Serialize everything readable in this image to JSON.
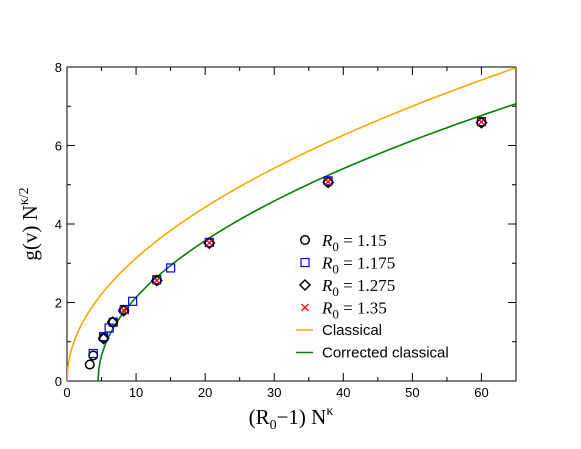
{
  "chart_data": {
    "type": "scatter",
    "xlabel": {
      "base": "(R",
      "sub": "0",
      "mid": "−1) N",
      "sup": "κ"
    },
    "ylabel": {
      "base": "g(v) N",
      "sup": "κ/2"
    },
    "xlim": [
      0,
      65
    ],
    "ylim": [
      0,
      8
    ],
    "xticks": [
      0,
      10,
      20,
      30,
      40,
      50,
      60
    ],
    "yticks": [
      0,
      2,
      4,
      6,
      8
    ],
    "x_minor_step": 5,
    "y_minor_step": 1,
    "grid": false,
    "legend_position": "center-right",
    "series": [
      {
        "name": "R0 = 1.15",
        "label_var": "R",
        "label_sub": "0",
        "label_value": " = 1.15",
        "marker": "circle",
        "color": "#000000",
        "points": [
          [
            3.3,
            0.42
          ],
          [
            3.8,
            0.65
          ],
          [
            5.3,
            1.1
          ],
          [
            6.6,
            1.5
          ],
          [
            8.2,
            1.8
          ],
          [
            13.0,
            2.57
          ],
          [
            20.6,
            3.52
          ],
          [
            37.8,
            5.07
          ],
          [
            60.0,
            6.59
          ]
        ]
      },
      {
        "name": "R0 = 1.175",
        "label_var": "R",
        "label_sub": "0",
        "label_value": " = 1.175",
        "marker": "square",
        "color": "#0000ff",
        "points": [
          [
            3.8,
            0.7
          ],
          [
            5.3,
            1.13
          ],
          [
            6.1,
            1.35
          ],
          [
            6.7,
            1.5
          ],
          [
            8.3,
            1.82
          ],
          [
            9.5,
            2.03
          ],
          [
            13.0,
            2.58
          ],
          [
            15.0,
            2.88
          ],
          [
            20.6,
            3.53
          ],
          [
            37.8,
            5.1
          ],
          [
            60.0,
            6.61
          ]
        ]
      },
      {
        "name": "R0 = 1.275",
        "label_var": "R",
        "label_sub": "0",
        "label_value": " = 1.275",
        "marker": "diamond",
        "color": "#000000",
        "points": [
          [
            5.3,
            1.08
          ],
          [
            6.6,
            1.5
          ],
          [
            8.2,
            1.79
          ],
          [
            13.0,
            2.56
          ],
          [
            20.6,
            3.51
          ],
          [
            37.8,
            5.06
          ],
          [
            60.0,
            6.58
          ]
        ]
      },
      {
        "name": "R0 = 1.35",
        "label_var": "R",
        "label_sub": "0",
        "label_value": " = 1.35",
        "marker": "cross",
        "color": "#ff0000",
        "points": [
          [
            8.2,
            1.8
          ],
          [
            13.0,
            2.56
          ],
          [
            20.6,
            3.52
          ],
          [
            37.8,
            5.08
          ],
          [
            60.0,
            6.6
          ]
        ]
      }
    ],
    "curves": [
      {
        "name": "Classical",
        "color": "#ffa500",
        "coef": 0.99,
        "offset": 0
      },
      {
        "name": "Corrected classical",
        "color": "#008000",
        "coef": 0.908,
        "offset": 4.5
      }
    ]
  }
}
